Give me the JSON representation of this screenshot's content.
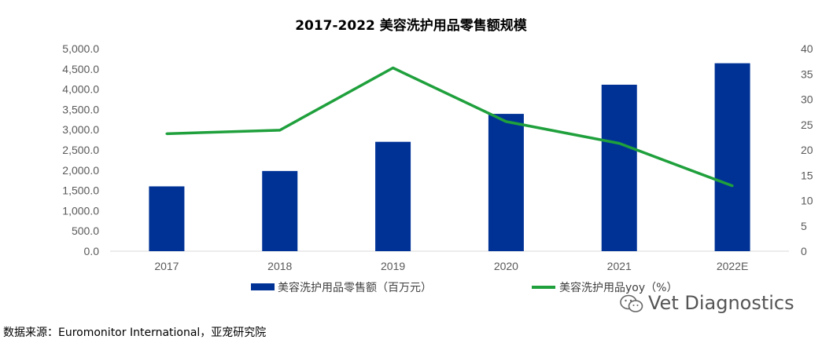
{
  "chart_data": {
    "type": "bar",
    "title": "2017-2022 美容洗护用品零售额规模",
    "categories": [
      "2017",
      "2018",
      "2019",
      "2020",
      "2021",
      "2022E"
    ],
    "series": [
      {
        "name": "美容洗护用品零售额（百万元）",
        "type": "bar",
        "axis": "left",
        "color": "#003296",
        "values": [
          1600,
          1980,
          2700,
          3390,
          4110,
          4640
        ]
      },
      {
        "name": "美容洗护用品yoy（%）",
        "type": "line",
        "axis": "right",
        "color": "#1FA03C",
        "values": [
          23.2,
          23.9,
          36.2,
          25.6,
          21.3,
          12.9
        ]
      }
    ],
    "y_left": {
      "ylim": [
        0,
        5000
      ],
      "ticks": [
        0,
        500,
        1000,
        1500,
        2000,
        2500,
        3000,
        3500,
        4000,
        4500,
        5000
      ],
      "tick_labels": [
        "0.0",
        "500.0",
        "1,000.0",
        "1,500.0",
        "2,000.0",
        "2,500.0",
        "3,000.0",
        "3,500.0",
        "4,000.0",
        "4,500.0",
        "5,000.0"
      ]
    },
    "y_right": {
      "ylim": [
        0,
        40
      ],
      "ticks": [
        0,
        5,
        10,
        15,
        20,
        25,
        30,
        35,
        40
      ],
      "tick_labels": [
        "0",
        "5",
        "10",
        "15",
        "20",
        "25",
        "30",
        "35",
        "40"
      ]
    },
    "legend_position": "bottom",
    "grid": false
  },
  "source": "数据来源：Euromonitor International，亚宠研究院",
  "watermark": "Vet Diagnostics"
}
